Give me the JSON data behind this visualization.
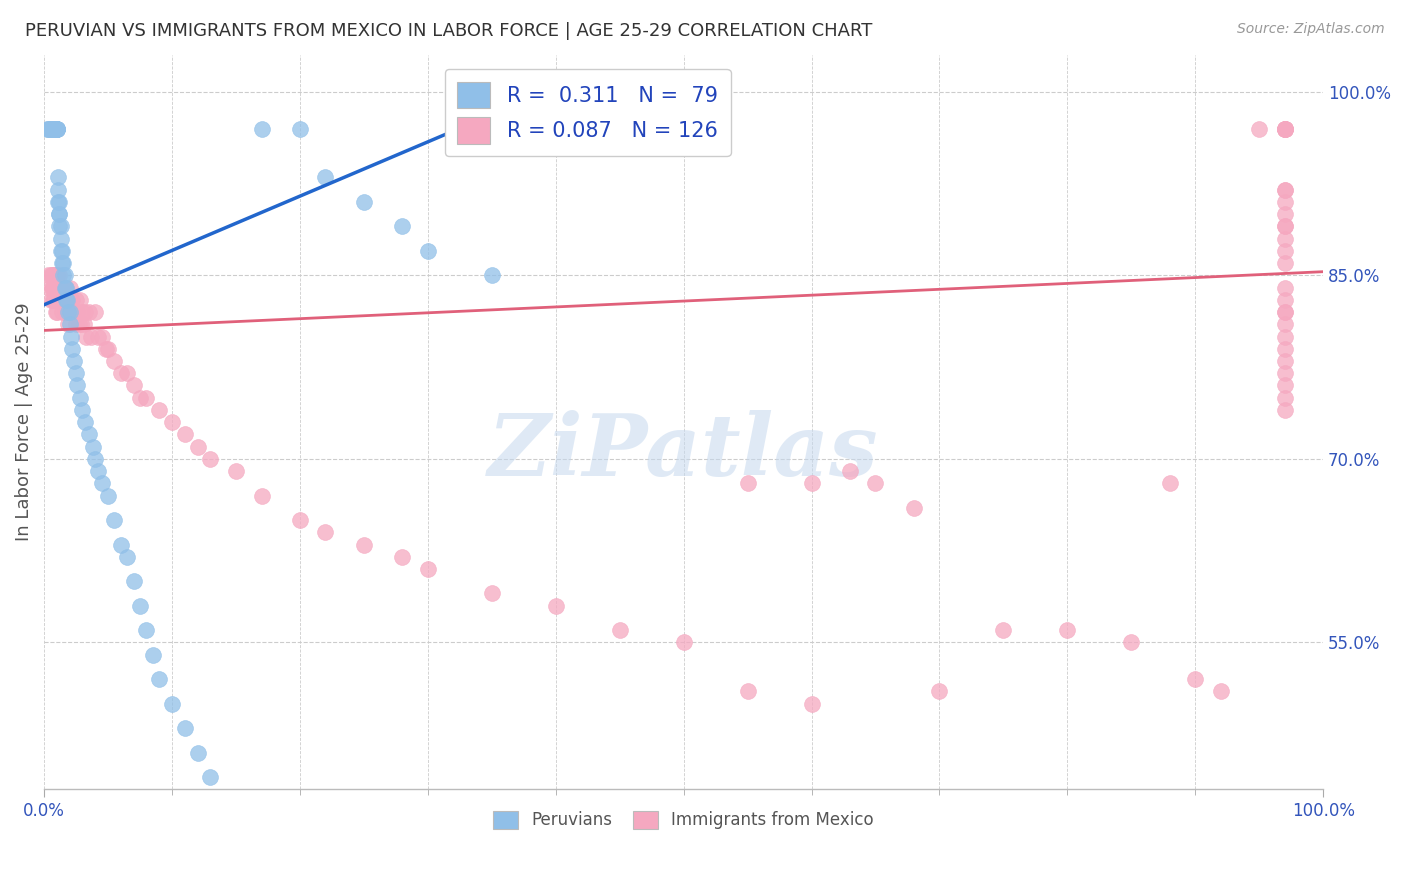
{
  "title": "PERUVIAN VS IMMIGRANTS FROM MEXICO IN LABOR FORCE | AGE 25-29 CORRELATION CHART",
  "source": "Source: ZipAtlas.com",
  "ylabel": "In Labor Force | Age 25-29",
  "ytick_labels": [
    "100.0%",
    "85.0%",
    "70.0%",
    "55.0%"
  ],
  "ytick_values": [
    1.0,
    0.85,
    0.7,
    0.55
  ],
  "legend_blue_R": "0.311",
  "legend_blue_N": "79",
  "legend_pink_R": "0.087",
  "legend_pink_N": "126",
  "blue_color": "#90bfe8",
  "pink_color": "#f5a8c0",
  "blue_line_color": "#2266cc",
  "pink_line_color": "#e0607a",
  "blue_scatter_x": [
    0.002,
    0.003,
    0.004,
    0.005,
    0.005,
    0.006,
    0.007,
    0.007,
    0.008,
    0.008,
    0.008,
    0.008,
    0.009,
    0.009,
    0.009,
    0.009,
    0.009,
    0.01,
    0.01,
    0.01,
    0.01,
    0.01,
    0.01,
    0.011,
    0.011,
    0.011,
    0.012,
    0.012,
    0.012,
    0.012,
    0.013,
    0.013,
    0.013,
    0.014,
    0.014,
    0.015,
    0.015,
    0.016,
    0.016,
    0.017,
    0.017,
    0.018,
    0.019,
    0.02,
    0.02,
    0.021,
    0.022,
    0.023,
    0.025,
    0.026,
    0.028,
    0.03,
    0.032,
    0.035,
    0.038,
    0.04,
    0.042,
    0.045,
    0.05,
    0.055,
    0.06,
    0.065,
    0.07,
    0.075,
    0.08,
    0.085,
    0.09,
    0.1,
    0.11,
    0.12,
    0.13,
    0.15,
    0.17,
    0.2,
    0.22,
    0.25,
    0.28,
    0.3,
    0.35
  ],
  "blue_scatter_y": [
    0.97,
    0.97,
    0.97,
    0.97,
    0.97,
    0.97,
    0.97,
    0.97,
    0.97,
    0.97,
    0.97,
    0.97,
    0.97,
    0.97,
    0.97,
    0.97,
    0.97,
    0.97,
    0.97,
    0.97,
    0.97,
    0.97,
    0.97,
    0.93,
    0.92,
    0.91,
    0.91,
    0.9,
    0.9,
    0.89,
    0.89,
    0.88,
    0.87,
    0.87,
    0.86,
    0.86,
    0.85,
    0.85,
    0.84,
    0.84,
    0.83,
    0.83,
    0.82,
    0.82,
    0.81,
    0.8,
    0.79,
    0.78,
    0.77,
    0.76,
    0.75,
    0.74,
    0.73,
    0.72,
    0.71,
    0.7,
    0.69,
    0.68,
    0.67,
    0.65,
    0.63,
    0.62,
    0.6,
    0.58,
    0.56,
    0.54,
    0.52,
    0.5,
    0.48,
    0.46,
    0.44,
    0.42,
    0.97,
    0.97,
    0.93,
    0.91,
    0.89,
    0.87,
    0.85
  ],
  "pink_scatter_x": [
    0.003,
    0.004,
    0.005,
    0.005,
    0.006,
    0.006,
    0.007,
    0.007,
    0.007,
    0.008,
    0.008,
    0.008,
    0.009,
    0.009,
    0.009,
    0.01,
    0.01,
    0.01,
    0.01,
    0.011,
    0.011,
    0.012,
    0.012,
    0.013,
    0.013,
    0.014,
    0.014,
    0.015,
    0.015,
    0.016,
    0.016,
    0.017,
    0.017,
    0.018,
    0.018,
    0.019,
    0.019,
    0.02,
    0.02,
    0.021,
    0.022,
    0.023,
    0.024,
    0.025,
    0.025,
    0.026,
    0.027,
    0.028,
    0.029,
    0.03,
    0.031,
    0.032,
    0.033,
    0.035,
    0.037,
    0.04,
    0.042,
    0.045,
    0.048,
    0.05,
    0.055,
    0.06,
    0.065,
    0.07,
    0.075,
    0.08,
    0.09,
    0.1,
    0.11,
    0.12,
    0.13,
    0.15,
    0.17,
    0.2,
    0.22,
    0.25,
    0.28,
    0.3,
    0.35,
    0.4,
    0.45,
    0.5,
    0.55,
    0.55,
    0.6,
    0.6,
    0.63,
    0.65,
    0.68,
    0.7,
    0.75,
    0.8,
    0.85,
    0.88,
    0.9,
    0.92,
    0.95,
    0.97,
    0.97,
    0.97,
    0.97,
    0.97,
    0.97,
    0.97,
    0.97,
    0.97,
    0.97,
    0.97,
    0.97,
    0.97,
    0.97,
    0.97,
    0.97,
    0.97,
    0.97,
    0.97,
    0.97,
    0.97,
    0.97,
    0.97,
    0.97,
    0.97,
    0.97,
    0.97,
    0.97,
    0.97
  ],
  "pink_scatter_y": [
    0.85,
    0.84,
    0.85,
    0.83,
    0.85,
    0.84,
    0.85,
    0.84,
    0.83,
    0.85,
    0.84,
    0.83,
    0.85,
    0.84,
    0.82,
    0.85,
    0.84,
    0.83,
    0.82,
    0.84,
    0.83,
    0.85,
    0.83,
    0.84,
    0.83,
    0.84,
    0.82,
    0.84,
    0.83,
    0.84,
    0.82,
    0.84,
    0.83,
    0.83,
    0.82,
    0.83,
    0.81,
    0.84,
    0.82,
    0.83,
    0.83,
    0.82,
    0.82,
    0.83,
    0.81,
    0.82,
    0.81,
    0.83,
    0.81,
    0.82,
    0.81,
    0.82,
    0.8,
    0.82,
    0.8,
    0.82,
    0.8,
    0.8,
    0.79,
    0.79,
    0.78,
    0.77,
    0.77,
    0.76,
    0.75,
    0.75,
    0.74,
    0.73,
    0.72,
    0.71,
    0.7,
    0.69,
    0.67,
    0.65,
    0.64,
    0.63,
    0.62,
    0.61,
    0.59,
    0.58,
    0.56,
    0.55,
    0.68,
    0.51,
    0.68,
    0.5,
    0.69,
    0.68,
    0.66,
    0.51,
    0.56,
    0.56,
    0.55,
    0.68,
    0.52,
    0.51,
    0.97,
    0.97,
    0.97,
    0.97,
    0.97,
    0.97,
    0.97,
    0.97,
    0.97,
    0.92,
    0.92,
    0.91,
    0.9,
    0.89,
    0.89,
    0.88,
    0.87,
    0.86,
    0.84,
    0.83,
    0.82,
    0.82,
    0.81,
    0.8,
    0.79,
    0.78,
    0.77,
    0.76,
    0.75,
    0.74
  ],
  "blue_line_x": [
    0.0,
    0.32
  ],
  "blue_line_y": [
    0.826,
    0.968
  ],
  "pink_line_x": [
    0.0,
    1.0
  ],
  "pink_line_y": [
    0.805,
    0.853
  ],
  "xlim": [
    0.0,
    1.0
  ],
  "ylim": [
    0.43,
    1.03
  ],
  "watermark_text": "ZiPatlas"
}
